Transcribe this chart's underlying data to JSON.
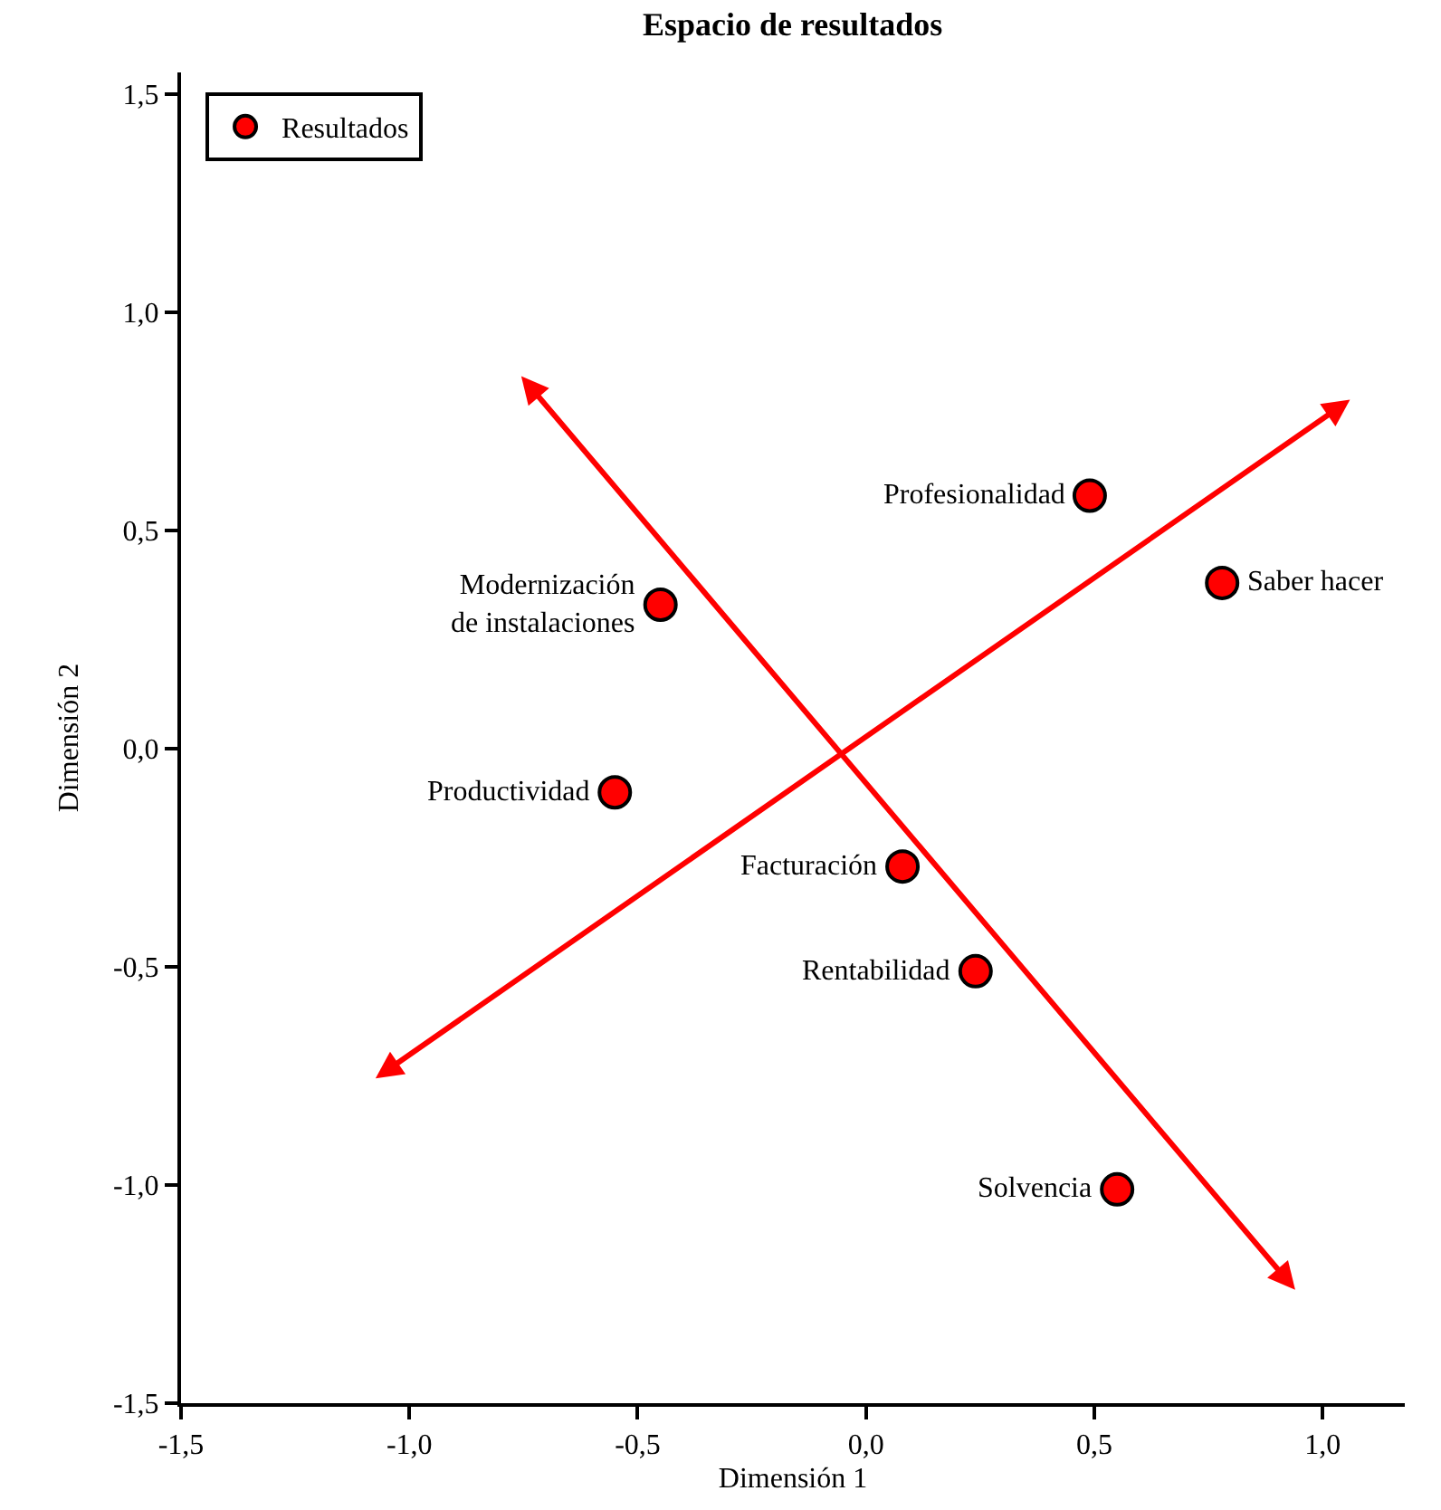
{
  "chart_data": {
    "type": "scatter",
    "title": "Espacio de resultados",
    "xlabel": "Dimensión 1",
    "ylabel": "Dimensión 2",
    "xlim": [
      -1.5,
      1.18
    ],
    "ylim": [
      -1.5,
      1.55
    ],
    "xticks": [
      {
        "value": -1.5,
        "label": "-1,5"
      },
      {
        "value": -1.0,
        "label": "-1,0"
      },
      {
        "value": -0.5,
        "label": "-0,5"
      },
      {
        "value": 0,
        "label": "0,0"
      },
      {
        "value": 0.5,
        "label": "0,5"
      },
      {
        "value": 1.0,
        "label": "1,0"
      }
    ],
    "yticks": [
      {
        "value": -1.5,
        "label": "-1,5"
      },
      {
        "value": -1.0,
        "label": "-1,0"
      },
      {
        "value": -0.5,
        "label": "-0,5"
      },
      {
        "value": 0,
        "label": "0,0"
      },
      {
        "value": 0.5,
        "label": "0,5"
      },
      {
        "value": 1.0,
        "label": "1,0"
      },
      {
        "value": 1.5,
        "label": "1,5"
      }
    ],
    "legend": "top left",
    "marker": "circle",
    "series": [
      {
        "name": "Resultados",
        "color": "#ff0000",
        "x": [
          0.49,
          0.78,
          -0.45,
          -0.55,
          0.08,
          0.24,
          0.55
        ],
        "values": [
          0.58,
          0.38,
          0.33,
          -0.1,
          -0.27,
          -0.51,
          -1.01
        ]
      }
    ],
    "annotations": [
      {
        "text": "Profesionalidad",
        "x": 0.49,
        "y": 0.58
      },
      {
        "text": "Saber hacer",
        "x": 0.78,
        "y": 0.38
      },
      {
        "text": "Modernización\nde instalaciones",
        "x": -0.45,
        "y": 0.33
      },
      {
        "text": "Productividad",
        "x": -0.55,
        "y": -0.1
      },
      {
        "text": "Facturación",
        "x": 0.08,
        "y": -0.27
      },
      {
        "text": "Rentabilidad",
        "x": 0.24,
        "y": -0.51
      },
      {
        "text": "Solvencia",
        "x": 0.55,
        "y": -1.01
      }
    ]
  }
}
